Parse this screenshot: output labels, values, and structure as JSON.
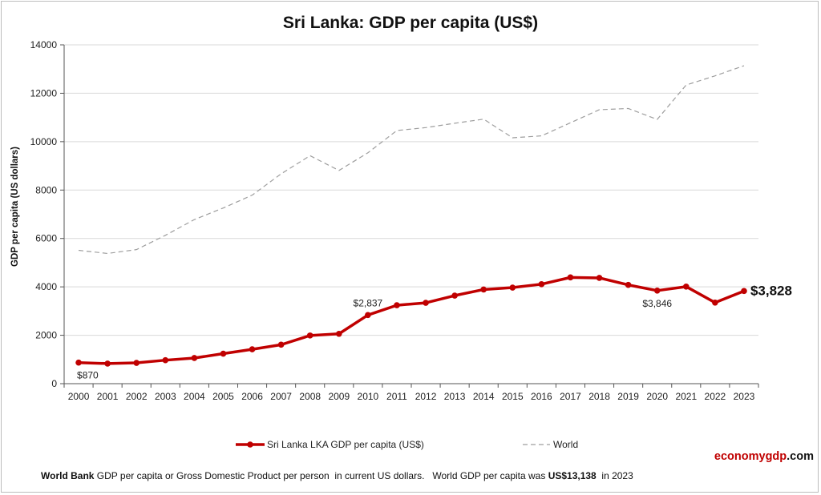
{
  "chart_data": {
    "type": "line",
    "title": "Sri Lanka: GDP per capita (US$)",
    "ylabel": "GDP per capita (US dollars)",
    "xlabel": "",
    "ylim": [
      0,
      14000
    ],
    "yticks": [
      "0",
      "2000",
      "4000",
      "6000",
      "8000",
      "10000",
      "12000",
      "14000"
    ],
    "grid": "horizontal",
    "legend_position": "bottom",
    "x": [
      "2000",
      "2001",
      "2002",
      "2003",
      "2004",
      "2005",
      "2006",
      "2007",
      "2008",
      "2009",
      "2010",
      "2011",
      "2012",
      "2013",
      "2014",
      "2015",
      "2016",
      "2017",
      "2018",
      "2019",
      "2020",
      "2021",
      "2022",
      "2023"
    ],
    "series": [
      {
        "name": "Sri Lanka LKA GDP per capita (US$)",
        "style": "solid-with-markers",
        "color": "#c00000",
        "values": [
          870,
          830,
          860,
          970,
          1060,
          1240,
          1420,
          1610,
          1990,
          2060,
          2837,
          3240,
          3340,
          3640,
          3890,
          3970,
          4110,
          4390,
          4370,
          4080,
          3846,
          4010,
          3350,
          3828
        ]
      },
      {
        "name": "World",
        "style": "dashed",
        "color": "#9e9e9e",
        "values": [
          5510,
          5380,
          5540,
          6130,
          6780,
          7260,
          7790,
          8670,
          9420,
          8810,
          9540,
          10460,
          10580,
          10760,
          10930,
          10160,
          10240,
          10780,
          11320,
          11370,
          10920,
          12340,
          12720,
          13138
        ]
      }
    ],
    "annotations": [
      {
        "text": "$870",
        "x": "2000",
        "y": 870
      },
      {
        "text": "$2,837",
        "x": "2010",
        "y": 2837
      },
      {
        "text": "$3,846",
        "x": "2020",
        "y": 3846
      },
      {
        "text": "$3,828",
        "x": "2023",
        "y": 3828,
        "emphasis": "large-bold"
      }
    ]
  },
  "footnote": {
    "source_bold": "World Bank",
    "text_1": " GDP per capita or Gross Domestic Product per person  in current US dollars.   World GDP per capita was ",
    "value_bold": "US$13,138",
    "text_2": "  in 2023"
  },
  "branding": {
    "part1": "economy",
    "part2": "gdp",
    "part3": ".com",
    "color_red": "#c00000",
    "color_dark": "#111111"
  }
}
